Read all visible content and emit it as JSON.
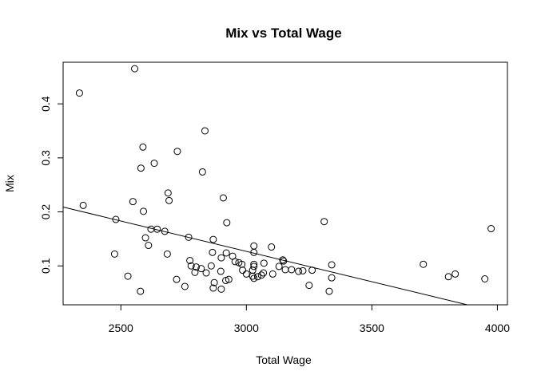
{
  "chart_data": {
    "type": "scatter",
    "title": "Mix vs Total Wage",
    "xlabel": "Total Wage",
    "ylabel": "Mix",
    "xlim": [
      2270,
      4040
    ],
    "ylim": [
      0.028,
      0.477
    ],
    "xticks": [
      2500,
      3000,
      3500,
      4000
    ],
    "xtick_labels": [
      "2500",
      "3000",
      "3500",
      "4000"
    ],
    "yticks": [
      0.1,
      0.2,
      0.3,
      0.4
    ],
    "ytick_labels": [
      "0.1",
      "0.2",
      "0.3",
      "0.4"
    ],
    "grid": false,
    "series": [
      {
        "marker": "open-circle",
        "points": [
          [
            2555,
            0.465
          ],
          [
            2335,
            0.42
          ],
          [
            2350,
            0.212
          ],
          [
            2835,
            0.35
          ],
          [
            2588,
            0.32
          ],
          [
            2725,
            0.312
          ],
          [
            2633,
            0.29
          ],
          [
            2580,
            0.281
          ],
          [
            2825,
            0.274
          ],
          [
            2688,
            0.235
          ],
          [
            2908,
            0.226
          ],
          [
            2548,
            0.219
          ],
          [
            2692,
            0.221
          ],
          [
            2590,
            0.201
          ],
          [
            2480,
            0.186
          ],
          [
            2922,
            0.18
          ],
          [
            3310,
            0.182
          ],
          [
            3975,
            0.169
          ],
          [
            2620,
            0.168
          ],
          [
            2645,
            0.168
          ],
          [
            2675,
            0.164
          ],
          [
            2770,
            0.153
          ],
          [
            2598,
            0.152
          ],
          [
            2868,
            0.149
          ],
          [
            2610,
            0.138
          ],
          [
            3030,
            0.137
          ],
          [
            3100,
            0.135
          ],
          [
            2475,
            0.122
          ],
          [
            2685,
            0.122
          ],
          [
            2865,
            0.125
          ],
          [
            2920,
            0.124
          ],
          [
            3030,
            0.125
          ],
          [
            2945,
            0.118
          ],
          [
            2900,
            0.115
          ],
          [
            2955,
            0.108
          ],
          [
            3145,
            0.111
          ],
          [
            3148,
            0.109
          ],
          [
            2775,
            0.11
          ],
          [
            2970,
            0.106
          ],
          [
            2982,
            0.103
          ],
          [
            3030,
            0.103
          ],
          [
            3070,
            0.105
          ],
          [
            3340,
            0.102
          ],
          [
            3705,
            0.103
          ],
          [
            2780,
            0.1
          ],
          [
            2800,
            0.098
          ],
          [
            2860,
            0.1
          ],
          [
            3030,
            0.099
          ],
          [
            3130,
            0.099
          ],
          [
            2820,
            0.095
          ],
          [
            2985,
            0.092
          ],
          [
            3025,
            0.092
          ],
          [
            3155,
            0.093
          ],
          [
            3180,
            0.093
          ],
          [
            3208,
            0.09
          ],
          [
            3225,
            0.091
          ],
          [
            3262,
            0.092
          ],
          [
            2795,
            0.088
          ],
          [
            2840,
            0.087
          ],
          [
            2898,
            0.09
          ],
          [
            3000,
            0.085
          ],
          [
            3068,
            0.087
          ],
          [
            3105,
            0.085
          ],
          [
            3025,
            0.081
          ],
          [
            3045,
            0.08
          ],
          [
            3060,
            0.083
          ],
          [
            3030,
            0.077
          ],
          [
            3340,
            0.078
          ],
          [
            3805,
            0.08
          ],
          [
            3832,
            0.085
          ],
          [
            3950,
            0.076
          ],
          [
            2528,
            0.081
          ],
          [
            2722,
            0.075
          ],
          [
            2918,
            0.073
          ],
          [
            2930,
            0.075
          ],
          [
            2872,
            0.069
          ],
          [
            2755,
            0.062
          ],
          [
            2868,
            0.059
          ],
          [
            2900,
            0.057
          ],
          [
            3250,
            0.064
          ],
          [
            2578,
            0.053
          ],
          [
            3330,
            0.053
          ]
        ]
      }
    ],
    "regression_line": [
      [
        2270,
        0.209
      ],
      [
        3880,
        0.028
      ]
    ]
  }
}
